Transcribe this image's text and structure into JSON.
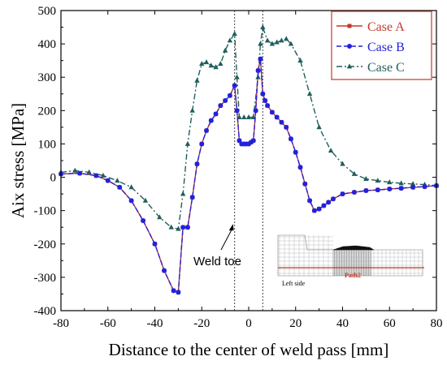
{
  "chart_data": {
    "type": "line",
    "xlabel": "Distance to the center of weld pass [mm]",
    "ylabel": "Aix stress [MPa]",
    "xlim": [
      -80,
      80
    ],
    "ylim": [
      -400,
      500
    ],
    "xticks": [
      -80,
      -60,
      -40,
      -20,
      0,
      20,
      40,
      60,
      80
    ],
    "yticks": [
      -400,
      -300,
      -200,
      -100,
      0,
      100,
      200,
      300,
      400,
      500
    ],
    "legend_position": "top-right",
    "grid": false,
    "reference_lines_x": [
      -6,
      6
    ],
    "annotation": {
      "text": "Weld toe",
      "arrow_target": [
        -6,
        -140
      ]
    },
    "inset": {
      "labels": [
        "Left side",
        "Path2"
      ]
    },
    "series": [
      {
        "name": "Case A",
        "color": "#c0392b",
        "marker": "square",
        "dash": "solid",
        "x": [
          -80,
          -72,
          -65,
          -60,
          -55,
          -50,
          -45,
          -40,
          -36,
          -32,
          -30,
          -28,
          -26,
          -24,
          -22,
          -20,
          -18,
          -16,
          -14,
          -12,
          -10,
          -8,
          -6,
          -5,
          -4,
          -3,
          -2,
          -1,
          0,
          1,
          2,
          3,
          4,
          5,
          6,
          7,
          8,
          10,
          12,
          14,
          16,
          18,
          20,
          22,
          24,
          26,
          28,
          30,
          32,
          34,
          36,
          40,
          45,
          50,
          55,
          60,
          65,
          70,
          75,
          80
        ],
        "y": [
          10,
          12,
          5,
          -10,
          -30,
          -70,
          -130,
          -200,
          -280,
          -340,
          -345,
          -150,
          -150,
          -60,
          40,
          100,
          140,
          170,
          190,
          215,
          230,
          245,
          275,
          200,
          110,
          100,
          100,
          100,
          100,
          105,
          110,
          200,
          320,
          355,
          250,
          230,
          215,
          195,
          180,
          165,
          150,
          115,
          75,
          30,
          -20,
          -70,
          -100,
          -95,
          -85,
          -75,
          -65,
          -50,
          -45,
          -40,
          -38,
          -35,
          -33,
          -30,
          -28,
          -25
        ]
      },
      {
        "name": "Case B",
        "color": "#2222dd",
        "marker": "circle",
        "dash": "dashed",
        "x": [
          -80,
          -72,
          -65,
          -60,
          -55,
          -50,
          -45,
          -40,
          -36,
          -32,
          -30,
          -28,
          -26,
          -24,
          -22,
          -20,
          -18,
          -16,
          -14,
          -12,
          -10,
          -8,
          -6,
          -5,
          -4,
          -3,
          -2,
          -1,
          0,
          1,
          2,
          3,
          4,
          5,
          6,
          7,
          8,
          10,
          12,
          14,
          16,
          18,
          20,
          22,
          24,
          26,
          28,
          30,
          32,
          34,
          36,
          40,
          45,
          50,
          55,
          60,
          65,
          70,
          75,
          80
        ],
        "y": [
          10,
          12,
          5,
          -10,
          -30,
          -70,
          -130,
          -200,
          -280,
          -340,
          -345,
          -150,
          -150,
          -60,
          40,
          100,
          140,
          170,
          190,
          215,
          230,
          245,
          275,
          200,
          110,
          100,
          100,
          100,
          100,
          105,
          110,
          200,
          320,
          355,
          250,
          230,
          215,
          195,
          180,
          165,
          150,
          115,
          75,
          30,
          -20,
          -70,
          -100,
          -95,
          -85,
          -75,
          -65,
          -50,
          -45,
          -40,
          -38,
          -35,
          -33,
          -30,
          -28,
          -25
        ]
      },
      {
        "name": "Case C",
        "color": "#1f5f5b",
        "marker": "triangle",
        "dash": "dashdot",
        "x": [
          -80,
          -74,
          -68,
          -62,
          -56,
          -50,
          -44,
          -38,
          -33,
          -30,
          -28,
          -26,
          -24,
          -22,
          -20,
          -18,
          -16,
          -14,
          -12,
          -10,
          -8,
          -6,
          -5,
          -4,
          -2,
          0,
          2,
          4,
          5,
          6,
          8,
          10,
          12,
          14,
          16,
          18,
          22,
          26,
          30,
          35,
          40,
          45,
          50,
          55,
          60,
          65,
          70,
          75,
          80
        ],
        "y": [
          15,
          20,
          15,
          5,
          -10,
          -30,
          -70,
          -120,
          -150,
          -155,
          -50,
          100,
          200,
          290,
          340,
          345,
          335,
          330,
          340,
          380,
          410,
          430,
          300,
          180,
          180,
          180,
          180,
          300,
          400,
          450,
          410,
          400,
          405,
          410,
          415,
          400,
          350,
          250,
          150,
          80,
          40,
          10,
          -5,
          -10,
          -15,
          -18,
          -20,
          -22,
          -25
        ]
      }
    ]
  }
}
